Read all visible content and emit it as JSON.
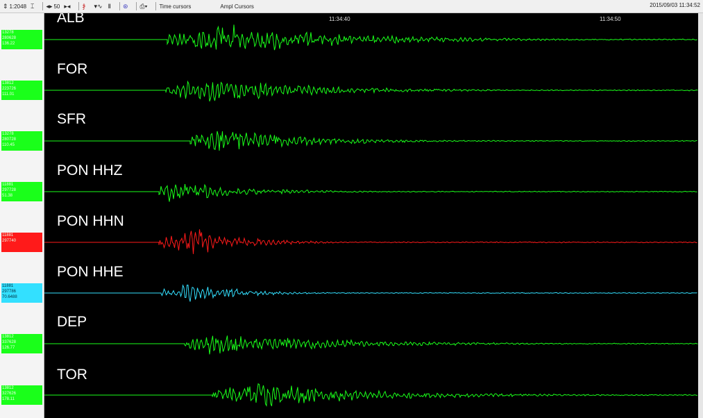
{
  "toolbar": {
    "scale": "1:2048",
    "step": "50",
    "time_cursors": "Time cursors",
    "ampl_cursors": "Ampl Cursors",
    "datetime": "2015/09/03 11:34:52"
  },
  "time_axis": {
    "labels": [
      "11:34:40",
      "11:34:50"
    ]
  },
  "colors": {
    "green": "#1aff1a",
    "red": "#ff1a1a",
    "cyan": "#33e0ff",
    "background": "#000000"
  },
  "traces": [
    {
      "station": "ALB",
      "color": "green",
      "info": [
        "13278",
        "280628",
        "136.22"
      ]
    },
    {
      "station": "FOR",
      "color": "green",
      "info": [
        "13812",
        "223726",
        "111.01"
      ]
    },
    {
      "station": "SFR",
      "color": "green",
      "info": [
        "13278",
        "280728",
        "110.45"
      ]
    },
    {
      "station": "PON HHZ",
      "color": "green",
      "info": [
        "11881",
        "297728",
        "51.38"
      ]
    },
    {
      "station": "PON HHN",
      "color": "red",
      "info": [
        "11881",
        "297740"
      ]
    },
    {
      "station": "PON HHE",
      "color": "cyan",
      "info": [
        "11881",
        "297786",
        "70.6488"
      ]
    },
    {
      "station": "DEP",
      "color": "green",
      "info": [
        "13812",
        "337628",
        "126.77"
      ]
    },
    {
      "station": "TOR",
      "color": "green",
      "info": [
        "13812",
        "327626",
        "178.11"
      ]
    }
  ]
}
